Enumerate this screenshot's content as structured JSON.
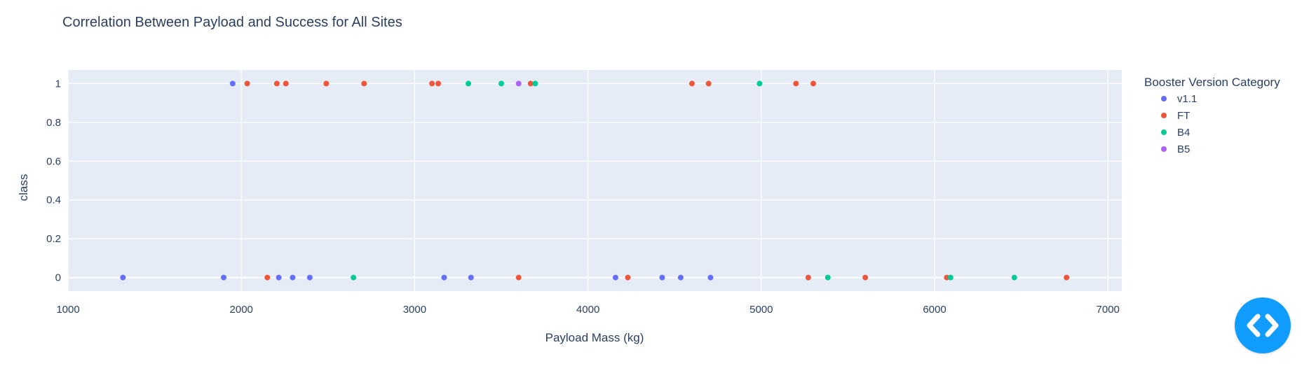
{
  "chart_data": {
    "type": "scatter",
    "title": "Correlation Between Payload and Success for All Sites",
    "xlabel": "Payload Mass (kg)",
    "ylabel": "class",
    "xlim": [
      1000,
      7080
    ],
    "ylim": [
      -0.07,
      1.07
    ],
    "x_ticks": [
      "1000",
      "2000",
      "3000",
      "4000",
      "5000",
      "6000",
      "7000"
    ],
    "y_ticks": [
      "0",
      "0.2",
      "0.4",
      "0.6",
      "0.8",
      "1"
    ],
    "x_tick_values": [
      1000,
      2000,
      3000,
      4000,
      5000,
      6000,
      7000
    ],
    "y_tick_values": [
      0,
      0.2,
      0.4,
      0.6,
      0.8,
      1
    ],
    "grid": true,
    "legend_title": "Booster Version Category",
    "legend_position": "right",
    "series": [
      {
        "name": "v1.1",
        "color": "#636efa",
        "points": [
          [
            1950,
            1
          ],
          [
            1317,
            0
          ],
          [
            1898,
            0
          ],
          [
            2216,
            0
          ],
          [
            2296,
            0
          ],
          [
            2395,
            0
          ],
          [
            3170,
            0
          ],
          [
            3325,
            0
          ],
          [
            4159,
            0
          ],
          [
            4428,
            0
          ],
          [
            4535,
            0
          ],
          [
            4707,
            0
          ]
        ]
      },
      {
        "name": "FT",
        "color": "#ef553b",
        "points": [
          [
            2034,
            1
          ],
          [
            2205,
            1
          ],
          [
            2257,
            1
          ],
          [
            2490,
            1
          ],
          [
            2708,
            1
          ],
          [
            3100,
            1
          ],
          [
            3136,
            1
          ],
          [
            3669,
            1
          ],
          [
            4600,
            1
          ],
          [
            4696,
            1
          ],
          [
            5200,
            1
          ],
          [
            5300,
            1
          ],
          [
            2150,
            0
          ],
          [
            3600,
            0
          ],
          [
            4230,
            0
          ],
          [
            5271,
            0
          ],
          [
            5600,
            0
          ],
          [
            6070,
            0
          ],
          [
            6761,
            0
          ]
        ]
      },
      {
        "name": "B4",
        "color": "#00cc96",
        "points": [
          [
            3310,
            1
          ],
          [
            3500,
            1
          ],
          [
            3696,
            1
          ],
          [
            4990,
            1
          ],
          [
            2647,
            0
          ],
          [
            5384,
            0
          ],
          [
            6092,
            0
          ],
          [
            6460,
            0
          ]
        ]
      },
      {
        "name": "B5",
        "color": "#ab63fa",
        "points": [
          [
            3600,
            1
          ]
        ]
      }
    ]
  }
}
